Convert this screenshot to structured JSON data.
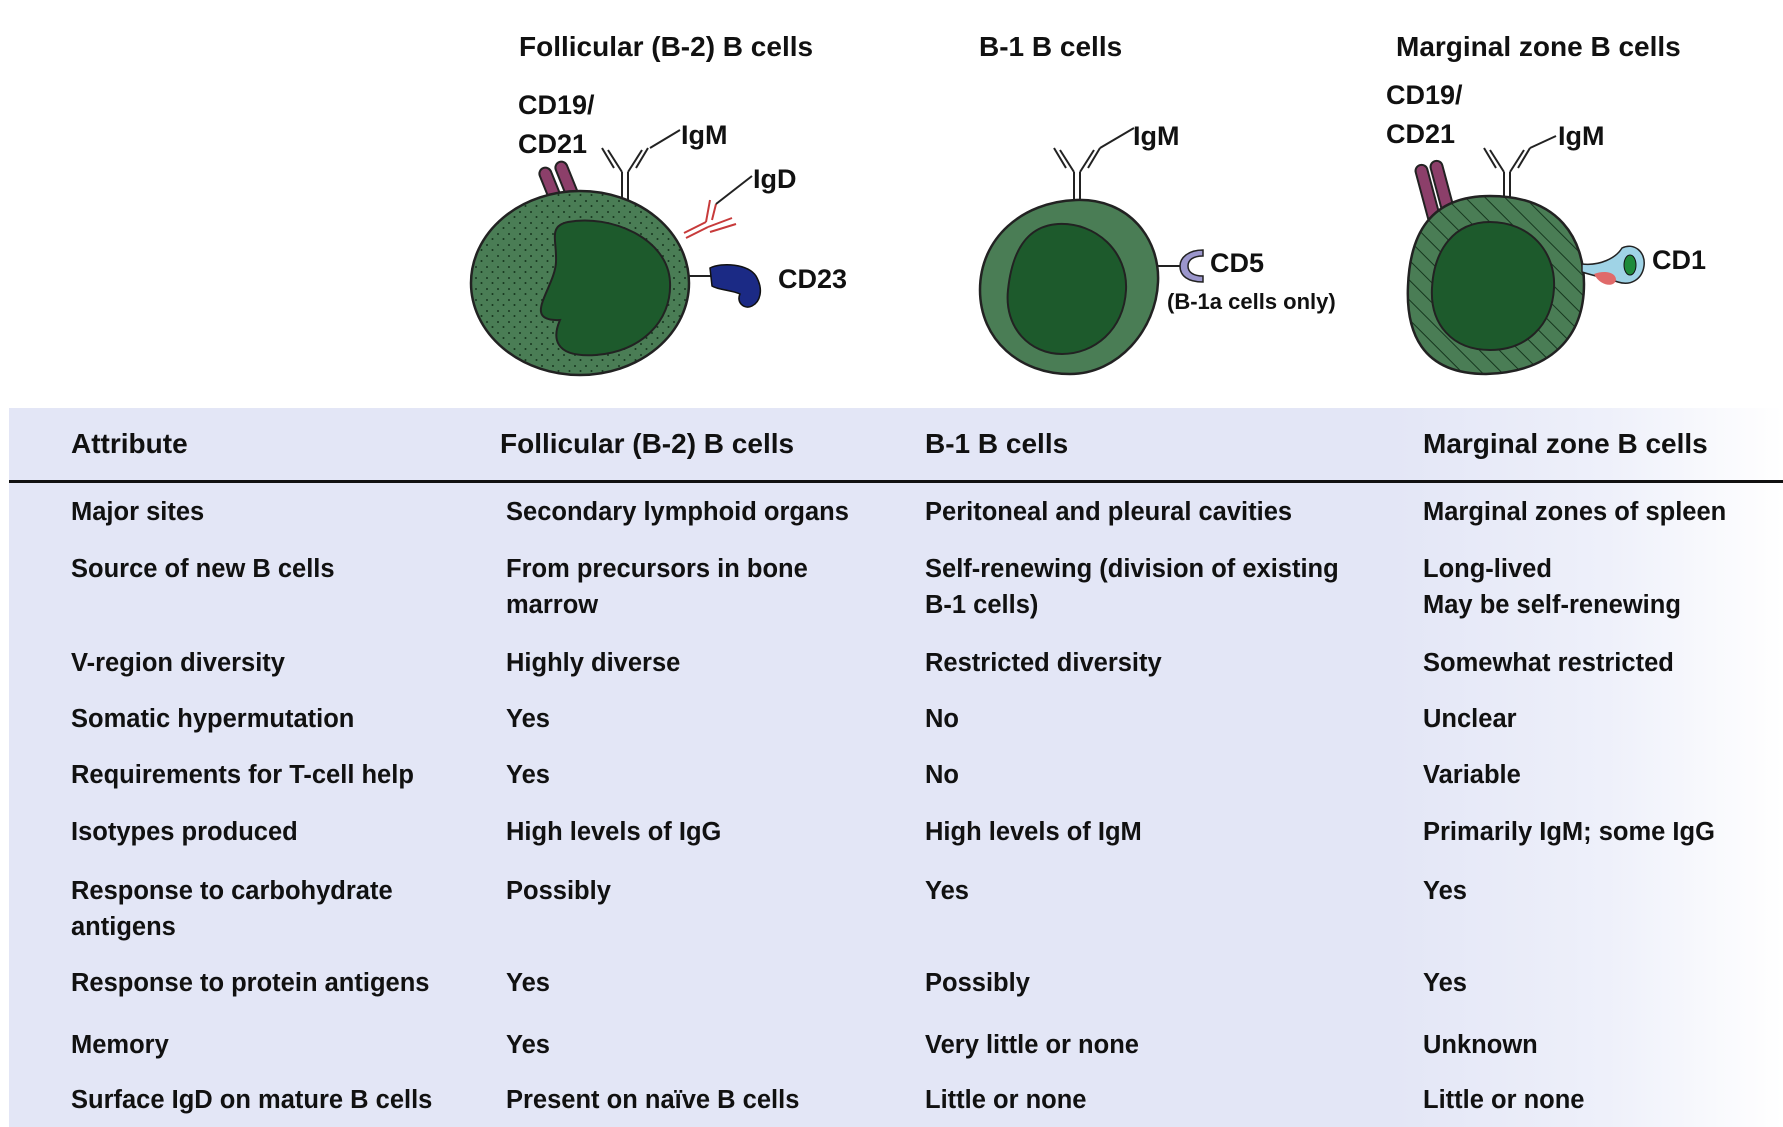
{
  "cells": {
    "follicular": {
      "title": "Follicular (B-2) B cells",
      "labels": {
        "cd19_line1": "CD19/",
        "cd19_line2": "CD21",
        "igm": "IgM",
        "igd": "IgD",
        "cd23": "CD23"
      }
    },
    "b1": {
      "title": "B-1 B cells",
      "labels": {
        "igm": "IgM",
        "cd5": "CD5",
        "cd5_note": "(B-1a cells only)"
      }
    },
    "marginal": {
      "title": "Marginal zone B cells",
      "labels": {
        "cd19_line1": "CD19/",
        "cd19_line2": "CD21",
        "igm": "IgM",
        "cd1": "CD1"
      }
    }
  },
  "colors": {
    "cell_body": "#4a7d55",
    "nucleus": "#1d5a2c",
    "cd19": "#8c3f6a",
    "cd23": "#1b2a85",
    "igd": "#c73a3a",
    "cd5": "#9b96cc",
    "cd1_outer": "#9fd3e6",
    "cd1_inner": "#1e8a3a",
    "cd1_pink": "#e06a6a",
    "table_bg": "#e3e6f6"
  },
  "table": {
    "headers": [
      "Attribute",
      "Follicular (B-2) B cells",
      "B-1 B cells",
      "Marginal zone B cells"
    ],
    "rows": [
      [
        "Major sites",
        "Secondary lymphoid organs",
        "Peritoneal and pleural cavities",
        "Marginal zones of spleen"
      ],
      [
        "Source of new B cells",
        "From precursors in bone\nmarrow",
        "Self-renewing (division of existing\nB-1 cells)",
        "Long-lived\nMay be self-renewing"
      ],
      [
        "V-region diversity",
        "Highly diverse",
        "Restricted diversity",
        "Somewhat restricted"
      ],
      [
        "Somatic hypermutation",
        "Yes",
        "No",
        "Unclear"
      ],
      [
        "Requirements for T-cell help",
        "Yes",
        "No",
        "Variable"
      ],
      [
        "Isotypes produced",
        "High levels of IgG",
        "High levels of IgM",
        "Primarily IgM; some IgG"
      ],
      [
        "Response to carbohydrate\nantigens",
        "Possibly",
        "Yes",
        "Yes"
      ],
      [
        "Response to protein antigens",
        "Yes",
        "Possibly",
        "Yes"
      ],
      [
        "Memory",
        "Yes",
        "Very little or none",
        "Unknown"
      ],
      [
        "Surface IgD on mature B cells",
        "Present on naïve B cells",
        "Little or none",
        "Little or none"
      ]
    ]
  }
}
